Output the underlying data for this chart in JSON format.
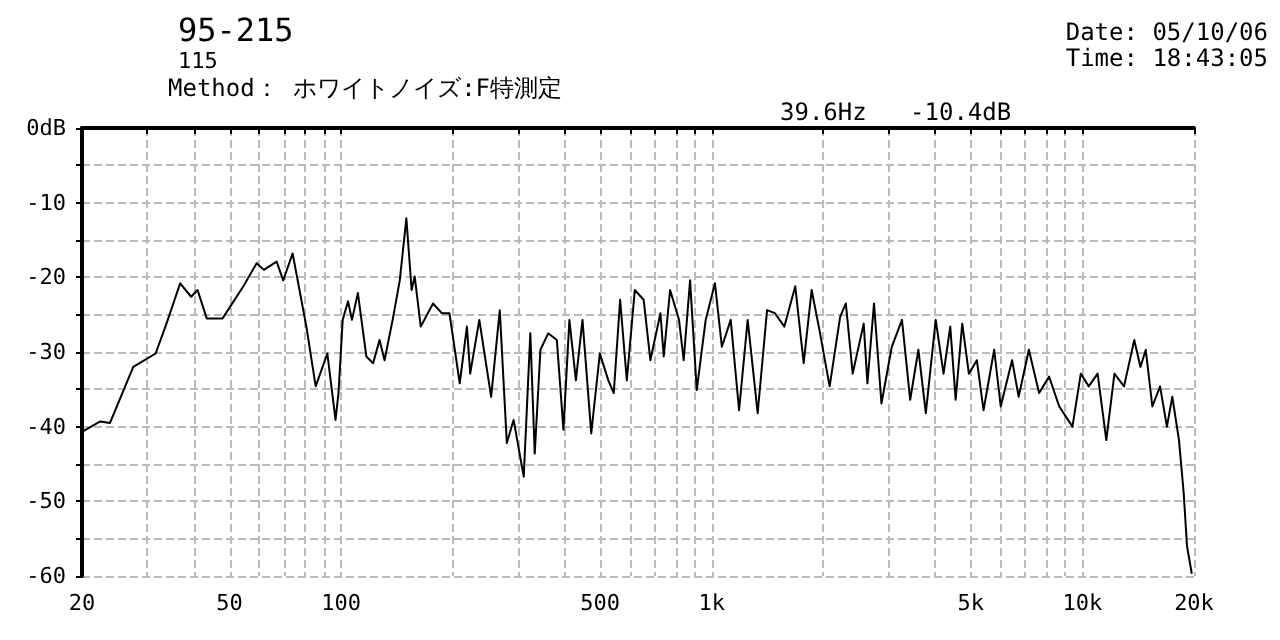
{
  "chart_data": {
    "type": "line",
    "title": "95-215",
    "subtitle": "115",
    "annotations": [
      "Method： ホワイトノイズ:F特測定",
      "Date: 05/10/06",
      "Time: 18:43:05",
      "39.6Hz   -10.4dB"
    ],
    "log": "x",
    "grid": true,
    "marker": "none",
    "line_style": "solid",
    "xlim": [
      20,
      20000
    ],
    "xticks": [
      20,
      {
        "value": 30,
        "label": null
      },
      {
        "value": 40,
        "label": null
      },
      50,
      {
        "value": 60,
        "label": null
      },
      {
        "value": 70,
        "label": null
      },
      {
        "value": 80,
        "label": null
      },
      {
        "value": 90,
        "label": null
      },
      100,
      {
        "value": 200,
        "label": null
      },
      {
        "value": 300,
        "label": null
      },
      {
        "value": 400,
        "label": null
      },
      500,
      {
        "value": 600,
        "label": null
      },
      {
        "value": 700,
        "label": null
      },
      {
        "value": 800,
        "label": null
      },
      {
        "value": 900,
        "label": null
      },
      {
        "value": 1000,
        "label": "1k"
      },
      {
        "value": 2000,
        "label": null
      },
      {
        "value": 3000,
        "label": null
      },
      {
        "value": 4000,
        "label": null
      },
      {
        "value": 5000,
        "label": "5k"
      },
      {
        "value": 6000,
        "label": null
      },
      {
        "value": 7000,
        "label": null
      },
      {
        "value": 8000,
        "label": null
      },
      {
        "value": 9000,
        "label": null
      },
      {
        "value": 10000,
        "label": "10k"
      },
      {
        "value": 20000,
        "label": "20k"
      }
    ],
    "ylim": [
      -60,
      0
    ],
    "yticks": [
      {
        "value": 0,
        "label": "0dB"
      },
      {
        "value": -5,
        "label": null
      },
      -10,
      {
        "value": -15,
        "label": null
      },
      -20,
      {
        "value": -25,
        "label": null
      },
      -30,
      {
        "value": -35,
        "label": null
      },
      -40,
      {
        "value": -45,
        "label": null
      },
      -50,
      {
        "value": -55,
        "label": null
      },
      -60
    ],
    "series": [
      {
        "color": "#000000",
        "x": [
          20,
          22.4,
          23.8,
          27.5,
          31.6,
          33.8,
          36.8,
          39.4,
          41,
          43.4,
          47.9,
          54.5,
          59.2,
          61.9,
          67,
          69.8,
          74,
          80.6,
          85.4,
          91.8,
          96.6,
          98.4,
          101,
          104.4,
          107,
          111,
          117,
          122,
          127,
          131,
          138,
          144,
          150,
          155,
          158,
          164,
          177,
          187,
          196,
          209,
          218.5,
          223,
          236,
          254,
          268,
          280,
          292,
          311,
          324,
          333,
          345,
          362,
          382,
          398,
          413,
          430,
          448,
          473,
          499,
          526,
          544,
          566,
          590,
          620,
          655,
          683,
          727,
          742,
          772,
          816,
          840,
          874,
          911,
          963,
          1020,
          1065,
          1125,
          1185,
          1250,
          1330,
          1410,
          1480,
          1570,
          1680,
          1770,
          1860,
          1960,
          2080,
          2220,
          2300,
          2400,
          2570,
          2630,
          2740,
          2870,
          3060,
          3260,
          3430,
          3610,
          3780,
          4020,
          4220,
          4400,
          4550,
          4740,
          4940,
          5190,
          5410,
          5780,
          6020,
          6460,
          6730,
          7170,
          7640,
          8130,
          8660,
          9400,
          9900,
          10400,
          10990,
          11600,
          12200,
          12950,
          13800,
          14340,
          14820,
          15440,
          16200,
          16900,
          17480,
          18220,
          18760,
          19150,
          19730
        ],
        "values": [
          -40.7,
          -39.3,
          -39.5,
          -32,
          -30.2,
          -26.2,
          -20.8,
          -22.6,
          -21.7,
          -25.5,
          -25.5,
          -21.2,
          -18.1,
          -19,
          -17.9,
          -20.4,
          -16.8,
          -26.6,
          -34.6,
          -30.2,
          -39.1,
          -35.5,
          -25.7,
          -23.2,
          -25.7,
          -22.1,
          -30.6,
          -31.5,
          -28.4,
          -31.1,
          -25.5,
          -20.4,
          -12.1,
          -21.7,
          -19.9,
          -26.6,
          -23.5,
          -24.8,
          -24.8,
          -34.2,
          -26.6,
          -32.9,
          -25.7,
          -36,
          -24.4,
          -42.2,
          -39.1,
          -46.7,
          -27.5,
          -43.6,
          -29.7,
          -27.5,
          -28.4,
          -40.4,
          -25.7,
          -33.8,
          -25.7,
          -40.9,
          -30.2,
          -33.8,
          -35.5,
          -23,
          -33.8,
          -21.7,
          -23,
          -31.1,
          -24.8,
          -30.6,
          -21.7,
          -25.7,
          -31.1,
          -20.4,
          -35.1,
          -25.7,
          -20.8,
          -29.3,
          -25.7,
          -37.8,
          -25.7,
          -38.2,
          -24.4,
          -24.8,
          -26.6,
          -21.2,
          -31.5,
          -21.7,
          -27.5,
          -34.6,
          -25.3,
          -23.5,
          -32.9,
          -26.2,
          -34.2,
          -23.5,
          -36.9,
          -29.3,
          -25.7,
          -36.4,
          -29.7,
          -38.2,
          -25.7,
          -32.9,
          -26.6,
          -36.4,
          -26.2,
          -32.9,
          -31.1,
          -37.8,
          -29.7,
          -37.3,
          -31.1,
          -36,
          -29.7,
          -35.5,
          -33.3,
          -37.3,
          -40,
          -32.9,
          -34.6,
          -32.9,
          -41.8,
          -32.9,
          -34.6,
          -28.4,
          -32,
          -29.7,
          -37.3,
          -34.6,
          -40,
          -36,
          -41.8,
          -48.9,
          -56,
          -59.7
        ]
      }
    ]
  }
}
